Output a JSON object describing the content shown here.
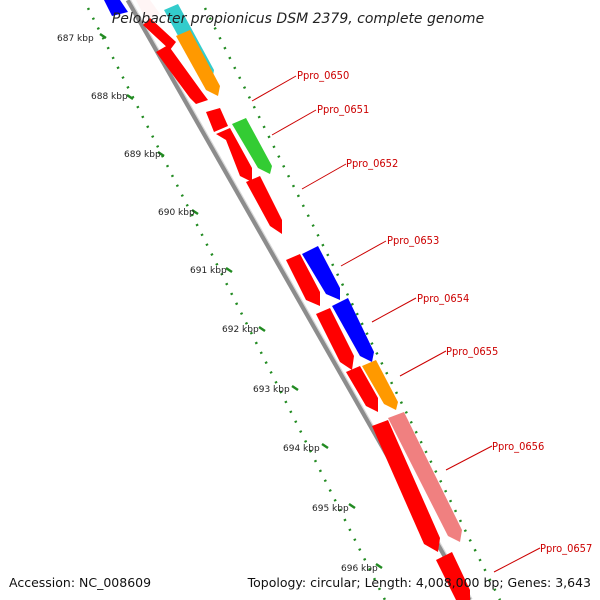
{
  "title": "Pelobacter propionicus DSM 2379, complete genome",
  "accession_label": "Accession: NC_008609",
  "summary_label": "Topology: circular; Length: 4,008,000 bp; Genes: 3,643",
  "colors": {
    "backbone": "#8c8c8c",
    "gene_default": "#ff0000",
    "gene_blue": "#0000ff",
    "gene_green": "#33cc33",
    "gene_orange": "#ff9900",
    "gene_cyan": "#33cccc",
    "gene_pink": "#f08080",
    "tick_dots": "#228b22",
    "label_line": "#cc0000"
  },
  "kbp_ticks": [
    "687 kbp",
    "688 kbp",
    "689 kbp",
    "690 kbp",
    "691 kbp",
    "692 kbp",
    "693 kbp",
    "694 kbp",
    "695 kbp",
    "696 kbp"
  ],
  "genes": [
    "Ppro_0650",
    "Ppro_0651",
    "Ppro_0652",
    "Ppro_0653",
    "Ppro_0654",
    "Ppro_0655",
    "Ppro_0656",
    "Ppro_0657"
  ]
}
